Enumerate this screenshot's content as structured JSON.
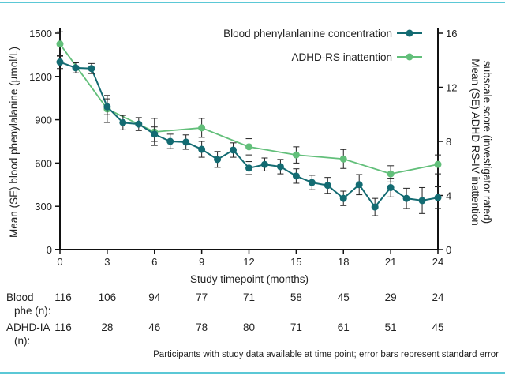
{
  "chart_data": {
    "type": "line",
    "xlabel": "Study timepoint (months)",
    "ylabel_left": "Mean (SE) blood phenylalanine (µmol/L)",
    "ylabel_right": "Mean (SE) ADHD RS-IV inattention subscale score (investigator rated)",
    "xlim": [
      0,
      24
    ],
    "xticks": [
      0,
      3,
      6,
      9,
      12,
      15,
      18,
      21,
      24
    ],
    "ylim_left": [
      0,
      1500
    ],
    "yticks_left": [
      0,
      300,
      600,
      900,
      1200,
      1500
    ],
    "ylim_right": [
      0,
      16
    ],
    "yticks_right": [
      0,
      4,
      8,
      12,
      16
    ],
    "legend_placement": "top-right",
    "series": [
      {
        "name": "Blood phenylanlanine concentration",
        "axis": "left",
        "color": "#136b72",
        "x": [
          0,
          1,
          2,
          3,
          4,
          5,
          6,
          7,
          8,
          9,
          10,
          11,
          12,
          13,
          14,
          15,
          16,
          17,
          18,
          19,
          20,
          21,
          22,
          23,
          24
        ],
        "y": [
          1300,
          1260,
          1255,
          990,
          880,
          870,
          800,
          750,
          745,
          695,
          625,
          690,
          565,
          590,
          575,
          510,
          465,
          445,
          355,
          450,
          295,
          430,
          355,
          340,
          360
        ],
        "se": [
          45,
          35,
          35,
          55,
          50,
          45,
          50,
          50,
          50,
          55,
          55,
          50,
          45,
          45,
          50,
          50,
          50,
          55,
          50,
          70,
          60,
          65,
          70,
          90,
          75
        ]
      },
      {
        "name": "ADHD-RS inattention",
        "axis": "right",
        "color": "#62bf7a",
        "x": [
          0,
          3,
          6,
          9,
          12,
          15,
          18,
          21,
          24
        ],
        "y": [
          15.2,
          10.4,
          8.7,
          9.0,
          7.6,
          7.0,
          6.7,
          5.6,
          6.3
        ],
        "se": [
          0.9,
          1.0,
          1.0,
          0.7,
          0.6,
          0.6,
          0.7,
          0.6,
          0.7
        ]
      }
    ]
  },
  "table": {
    "x": [
      0,
      3,
      6,
      9,
      12,
      15,
      18,
      21,
      24
    ],
    "rows": [
      {
        "label1": "Blood",
        "label2": "phe (n):",
        "values": [
          "116",
          "106",
          "94",
          "77",
          "71",
          "58",
          "45",
          "29",
          "24"
        ]
      },
      {
        "label1": "ADHD-IA",
        "label2": "(n):",
        "values": [
          "116",
          "28",
          "46",
          "78",
          "80",
          "71",
          "61",
          "51",
          "45"
        ]
      }
    ]
  },
  "footnote": "Participants with study data available at time point; error bars represent standard error"
}
